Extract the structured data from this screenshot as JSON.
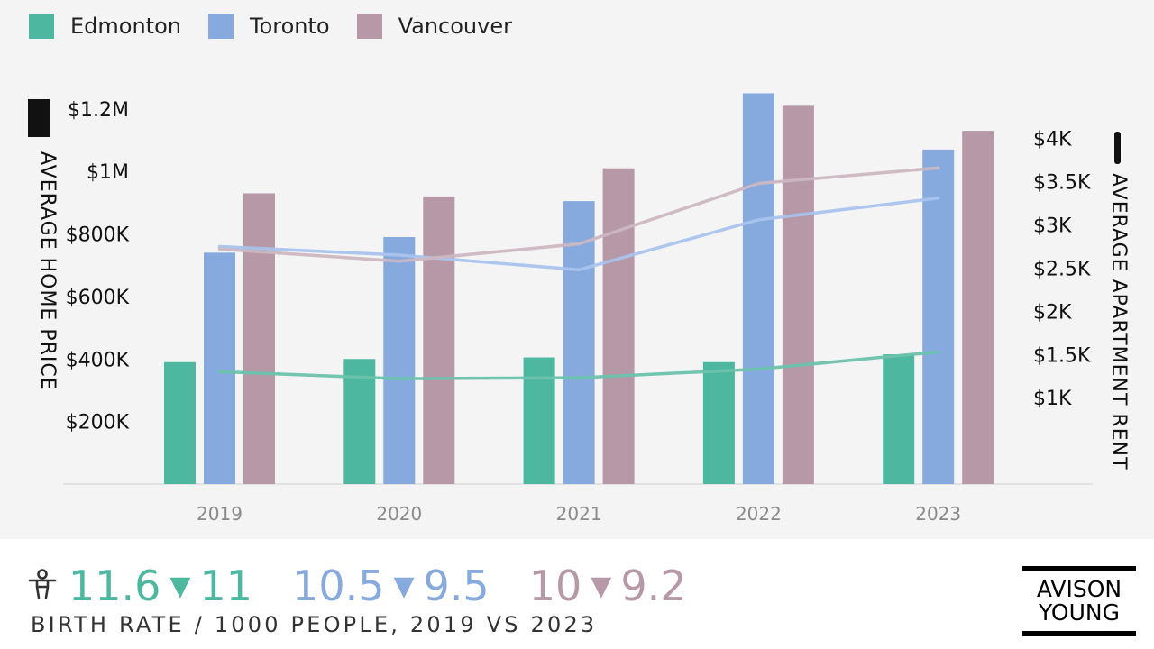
{
  "chart_data": {
    "type": "bar",
    "categories": [
      "2019",
      "2020",
      "2021",
      "2022",
      "2023"
    ],
    "series": [
      {
        "name": "Edmonton",
        "color": "#4db89f",
        "values": [
          390000,
          400000,
          405000,
          390000,
          415000
        ]
      },
      {
        "name": "Toronto",
        "color": "#86a9de",
        "values": [
          740000,
          790000,
          905000,
          1250000,
          1070000
        ]
      },
      {
        "name": "Vancouver",
        "color": "#b698a6",
        "values": [
          930000,
          920000,
          1010000,
          1210000,
          1130000
        ]
      }
    ],
    "line_series": [
      {
        "name": "Edmonton",
        "color": "#6cc2ac",
        "values": [
          1300,
          1220,
          1230,
          1330,
          1530
        ]
      },
      {
        "name": "Toronto",
        "color": "#a9c3ec",
        "values": [
          2750,
          2650,
          2480,
          3060,
          3310
        ]
      },
      {
        "name": "Vancouver",
        "color": "#ccb7c1",
        "values": [
          2720,
          2580,
          2780,
          3480,
          3660
        ]
      }
    ],
    "ylabel": "AVERAGE HOME PRICE",
    "y2label": "AVERAGE APARTMENT RENT",
    "ylim": [
      0,
      1260000
    ],
    "y2lim": [
      0,
      4560
    ],
    "yticks": [
      {
        "value": 200000,
        "label": "$200K"
      },
      {
        "value": 400000,
        "label": "$400K"
      },
      {
        "value": 600000,
        "label": "$600K"
      },
      {
        "value": 800000,
        "label": "$800K"
      },
      {
        "value": 1000000,
        "label": "$1M"
      },
      {
        "value": 1200000,
        "label": "$1.2M"
      }
    ],
    "y2ticks": [
      {
        "value": 1000,
        "label": "$1K"
      },
      {
        "value": 1500,
        "label": "$1.5K"
      },
      {
        "value": 2000,
        "label": "$2K"
      },
      {
        "value": 2500,
        "label": "$2.5K"
      },
      {
        "value": 3000,
        "label": "$3K"
      },
      {
        "value": 3500,
        "label": "$3.5K"
      },
      {
        "value": 4000,
        "label": "$4K"
      }
    ],
    "legend_position": "top-left",
    "grid": false
  },
  "birth_rate": {
    "caption": "BIRTH RATE / 1000 PEOPLE, 2019 VS 2023",
    "icon": "person-icon",
    "stats": [
      {
        "city": "Edmonton",
        "from": "11.6",
        "to": "11",
        "color": "#4db89f"
      },
      {
        "city": "Toronto",
        "from": "10.5",
        "to": "9.5",
        "color": "#86a9de"
      },
      {
        "city": "Vancouver",
        "from": "10",
        "to": "9.2",
        "color": "#b698a6"
      }
    ]
  },
  "logo": {
    "line1": "AVISON",
    "line2": "YOUNG"
  }
}
